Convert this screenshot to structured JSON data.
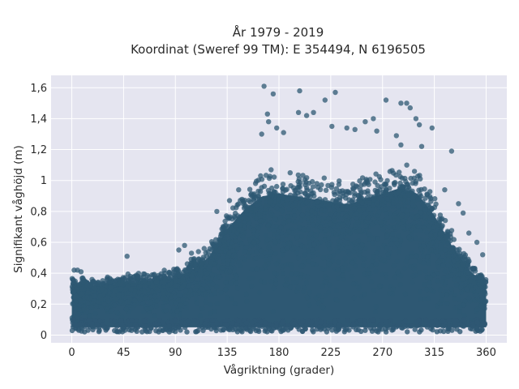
{
  "chart_data": {
    "type": "scatter",
    "title_line1": "År 1979 - 2019",
    "title_line2": "Koordinat (Sweref 99 TM): E 354494, N 6196505",
    "xlabel": "Vågriktning (grader)",
    "ylabel": "Signifikant våghöjd (m)",
    "xlim": [
      -18,
      378
    ],
    "ylim": [
      -0.05,
      1.68
    ],
    "x_ticks": [
      0,
      45,
      90,
      135,
      180,
      225,
      270,
      315,
      360
    ],
    "x_tick_labels": [
      "0",
      "45",
      "90",
      "135",
      "180",
      "225",
      "270",
      "315",
      "360"
    ],
    "y_ticks": [
      0,
      0.2,
      0.4,
      0.6,
      0.8,
      1.0,
      1.2,
      1.4,
      1.6
    ],
    "y_tick_labels": [
      "0",
      "0,2",
      "0,4",
      "0,6",
      "0,8",
      "1",
      "1,2",
      "1,4",
      "1,6"
    ],
    "grid": true,
    "colors": {
      "point": "#2e5873",
      "plot_background": "#e5e5f0",
      "grid": "#ffffff"
    },
    "envelope": {
      "description_free": true,
      "x": [
        0,
        20,
        45,
        70,
        90,
        105,
        120,
        135,
        150,
        165,
        180,
        195,
        210,
        225,
        240,
        255,
        270,
        285,
        300,
        315,
        330,
        345,
        360
      ],
      "y_max": [
        0.38,
        0.36,
        0.38,
        0.4,
        0.42,
        0.48,
        0.58,
        0.78,
        0.92,
        1.02,
        1.04,
        1.02,
        1.0,
        0.98,
        0.96,
        1.0,
        1.04,
        1.08,
        1.04,
        0.88,
        0.66,
        0.48,
        0.36
      ],
      "y_min": 0.05
    },
    "outliers": [
      {
        "x": 167,
        "y": 1.61
      },
      {
        "x": 170,
        "y": 1.43
      },
      {
        "x": 165,
        "y": 1.3
      },
      {
        "x": 175,
        "y": 1.56
      },
      {
        "x": 171,
        "y": 1.38
      },
      {
        "x": 178,
        "y": 1.34
      },
      {
        "x": 184,
        "y": 1.31
      },
      {
        "x": 198,
        "y": 1.58
      },
      {
        "x": 197,
        "y": 1.44
      },
      {
        "x": 204,
        "y": 1.42
      },
      {
        "x": 210,
        "y": 1.44
      },
      {
        "x": 220,
        "y": 1.52
      },
      {
        "x": 229,
        "y": 1.57
      },
      {
        "x": 226,
        "y": 1.35
      },
      {
        "x": 239,
        "y": 1.34
      },
      {
        "x": 246,
        "y": 1.33
      },
      {
        "x": 255,
        "y": 1.38
      },
      {
        "x": 262,
        "y": 1.4
      },
      {
        "x": 265,
        "y": 1.32
      },
      {
        "x": 273,
        "y": 1.52
      },
      {
        "x": 286,
        "y": 1.5
      },
      {
        "x": 291,
        "y": 1.5
      },
      {
        "x": 294,
        "y": 1.47
      },
      {
        "x": 299,
        "y": 1.4
      },
      {
        "x": 302,
        "y": 1.36
      },
      {
        "x": 313,
        "y": 1.34
      },
      {
        "x": 330,
        "y": 1.19
      },
      {
        "x": 282,
        "y": 1.29
      },
      {
        "x": 304,
        "y": 1.22
      },
      {
        "x": 286,
        "y": 1.23
      },
      {
        "x": 48,
        "y": 0.51
      },
      {
        "x": 93,
        "y": 0.55
      },
      {
        "x": 98,
        "y": 0.58
      },
      {
        "x": 104,
        "y": 0.53
      },
      {
        "x": 110,
        "y": 0.54
      },
      {
        "x": 115,
        "y": 0.56
      },
      {
        "x": 145,
        "y": 0.94
      },
      {
        "x": 137,
        "y": 0.87
      },
      {
        "x": 126,
        "y": 0.8
      },
      {
        "x": 345,
        "y": 0.66
      },
      {
        "x": 352,
        "y": 0.6
      },
      {
        "x": 357,
        "y": 0.52
      },
      {
        "x": 340,
        "y": 0.79
      },
      {
        "x": 336,
        "y": 0.85
      },
      {
        "x": 324,
        "y": 0.94
      },
      {
        "x": 2,
        "y": 0.42
      },
      {
        "x": 8,
        "y": 0.41
      },
      {
        "x": 5,
        "y": 0.42
      }
    ]
  }
}
